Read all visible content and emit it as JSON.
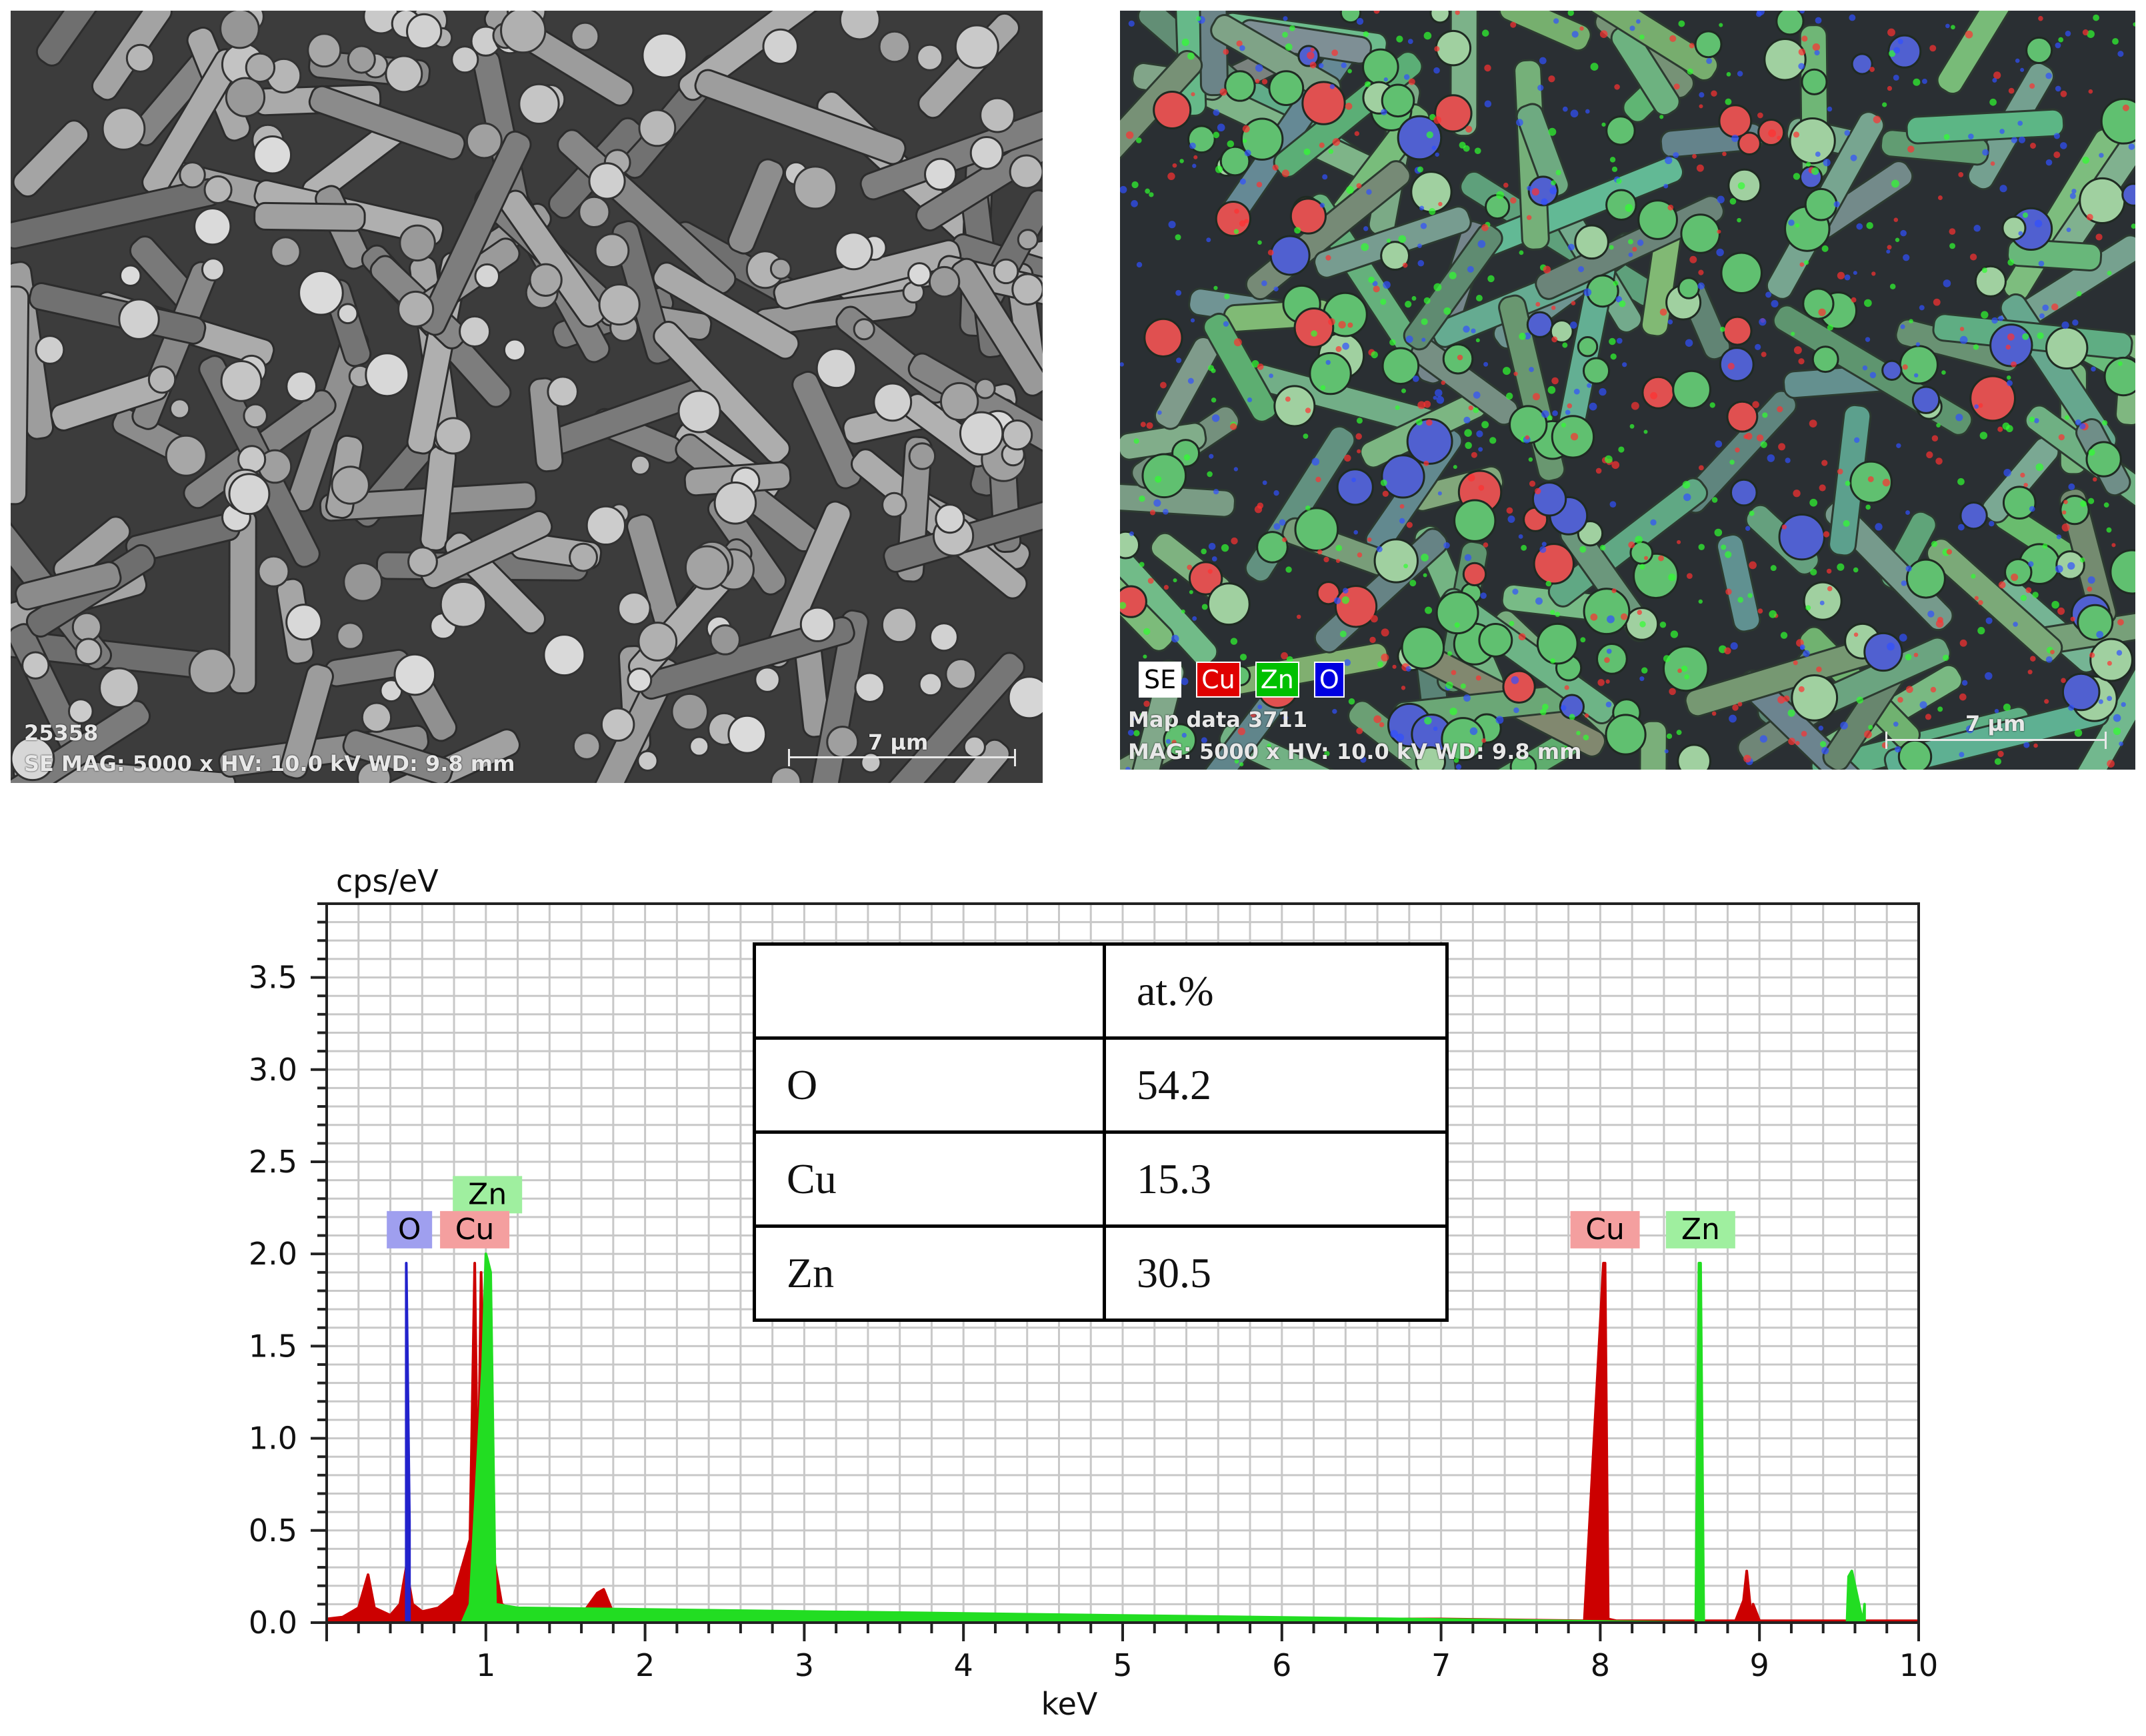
{
  "sem_left": {
    "image_id": "25358",
    "info": "SE  MAG: 5000 x  HV: 10.0 kV  WD: 9.8 mm",
    "scale_label": "7 µm"
  },
  "sem_right": {
    "map_id": "Map data 3711",
    "info": "MAG: 5000 x  HV: 10.0 kV  WD: 9.8 mm",
    "scale_label": "7 µm",
    "legend": [
      {
        "label": "SE",
        "color": "#ffffff",
        "text_color": "#000000"
      },
      {
        "label": "Cu",
        "color": "#e00000",
        "text_color": "#ffffff"
      },
      {
        "label": "Zn",
        "color": "#00c000",
        "text_color": "#ffffff"
      },
      {
        "label": "O",
        "color": "#0000e0",
        "text_color": "#ffffff"
      }
    ]
  },
  "table": {
    "header": [
      "",
      "at.%"
    ],
    "rows": [
      [
        "O",
        "54.2"
      ],
      [
        "Cu",
        "15.3"
      ],
      [
        "Zn",
        "30.5"
      ]
    ]
  },
  "chart_data": {
    "type": "line",
    "title": "",
    "xlabel": "keV",
    "ylabel": "cps/eV",
    "xlim": [
      0,
      10
    ],
    "ylim": [
      0,
      3.9
    ],
    "x_ticks": [
      "1",
      "2",
      "3",
      "4",
      "5",
      "6",
      "7",
      "8",
      "9",
      "10"
    ],
    "y_ticks": [
      "0.0",
      "0.5",
      "1.0",
      "1.5",
      "2.0",
      "2.5",
      "3.0",
      "3.5"
    ],
    "grid": true,
    "series": [
      {
        "name": "Cu",
        "color": "#cc0000",
        "x": [
          0.0,
          0.1,
          0.2,
          0.26,
          0.3,
          0.4,
          0.46,
          0.5,
          0.54,
          0.6,
          0.7,
          0.8,
          0.85,
          0.9,
          0.93,
          0.95,
          0.97,
          1.0,
          1.05,
          1.1,
          1.2,
          1.3,
          1.4,
          1.5,
          1.6,
          1.7,
          1.74,
          1.8,
          1.9,
          2.0,
          2.3,
          2.6,
          3.0,
          3.5,
          3.7,
          4.0,
          5.0,
          6.0,
          7.0,
          7.9,
          8.02,
          8.03,
          8.05,
          8.1,
          8.85,
          8.9,
          8.92,
          8.95,
          8.96,
          9.0,
          10.0
        ],
        "y": [
          0.02,
          0.03,
          0.08,
          0.26,
          0.08,
          0.04,
          0.1,
          0.3,
          0.1,
          0.06,
          0.08,
          0.15,
          0.3,
          0.45,
          1.95,
          0.6,
          1.9,
          0.9,
          0.35,
          0.1,
          0.05,
          0.04,
          0.04,
          0.05,
          0.04,
          0.16,
          0.18,
          0.05,
          0.04,
          0.04,
          0.05,
          0.04,
          0.04,
          0.04,
          0.05,
          0.03,
          0.02,
          0.02,
          0.02,
          0.01,
          1.95,
          1.95,
          0.02,
          0.01,
          0.01,
          0.12,
          0.28,
          0.02,
          0.1,
          0.01,
          0.01
        ]
      },
      {
        "name": "Zn",
        "color": "#22dd22",
        "x": [
          0.85,
          0.9,
          0.98,
          1.0,
          1.01,
          1.03,
          1.06,
          1.2,
          8.6,
          8.62,
          8.63,
          8.65,
          9.55,
          9.56,
          9.58,
          9.65,
          9.66
        ],
        "y": [
          0.0,
          0.1,
          1.4,
          2.0,
          1.97,
          1.9,
          0.1,
          0.08,
          0.0,
          1.95,
          1.95,
          0.0,
          0.0,
          0.25,
          0.28,
          0.0,
          0.1
        ]
      },
      {
        "name": "O",
        "color": "#2222cc",
        "x": [
          0.5,
          0.52
        ],
        "y": [
          1.95,
          0.55
        ]
      }
    ],
    "peak_labels": [
      {
        "label": "O",
        "x": 0.52,
        "color": "#9f9fef",
        "text_color": "#000000"
      },
      {
        "label": "Zn",
        "x": 1.01,
        "color": "#9fef9f",
        "text_color": "#000000",
        "level": "upper"
      },
      {
        "label": "Cu",
        "x": 0.93,
        "color": "#f49f9f",
        "text_color": "#000000"
      },
      {
        "label": "Cu",
        "x": 8.03,
        "color": "#f49f9f",
        "text_color": "#000000"
      },
      {
        "label": "Zn",
        "x": 8.63,
        "color": "#9fef9f",
        "text_color": "#000000"
      }
    ]
  }
}
